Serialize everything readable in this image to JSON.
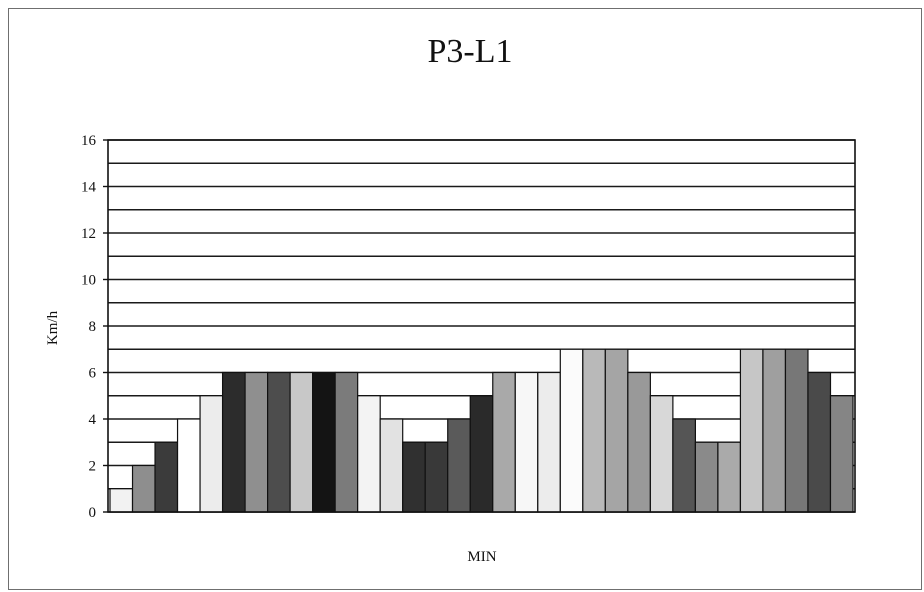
{
  "chart_data": {
    "type": "bar",
    "title": "P3-L1",
    "xlabel": "MIN",
    "ylabel": "Km/h",
    "ylim": [
      0,
      16
    ],
    "yticks": [
      0,
      2,
      4,
      6,
      8,
      10,
      12,
      14,
      16
    ],
    "grid": true,
    "gridlines": [
      0,
      1,
      2,
      3,
      4,
      5,
      6,
      7,
      8,
      9,
      10,
      11,
      12,
      13,
      14,
      15,
      16
    ],
    "legend": "none",
    "values": [
      1,
      2,
      3,
      4,
      5,
      6,
      6,
      6,
      6,
      6,
      6,
      5,
      4,
      3,
      3,
      4,
      5,
      6,
      6,
      6,
      7,
      7,
      7,
      6,
      5,
      4,
      3,
      3,
      7,
      7,
      7,
      6,
      5
    ],
    "colors": [
      "#f2f2f2",
      "#8e8e8e",
      "#3b3b3b",
      "#ffffff",
      "#ececec",
      "#2c2c2c",
      "#8f8f8f",
      "#4d4d4d",
      "#c8c8c8",
      "#141414",
      "#7b7b7b",
      "#f3f3f3",
      "#e2e2e2",
      "#303030",
      "#393939",
      "#5a5a5a",
      "#2a2a2a",
      "#a9a9a9",
      "#f7f7f7",
      "#ececec",
      "#fbfbfb",
      "#b9b9b9",
      "#a5a5a5",
      "#999999",
      "#d8d8d8",
      "#555555",
      "#8a8a8a",
      "#aaaaaa",
      "#c6c6c6",
      "#9f9f9f",
      "#777777",
      "#4a4a4a",
      "#858585"
    ]
  }
}
